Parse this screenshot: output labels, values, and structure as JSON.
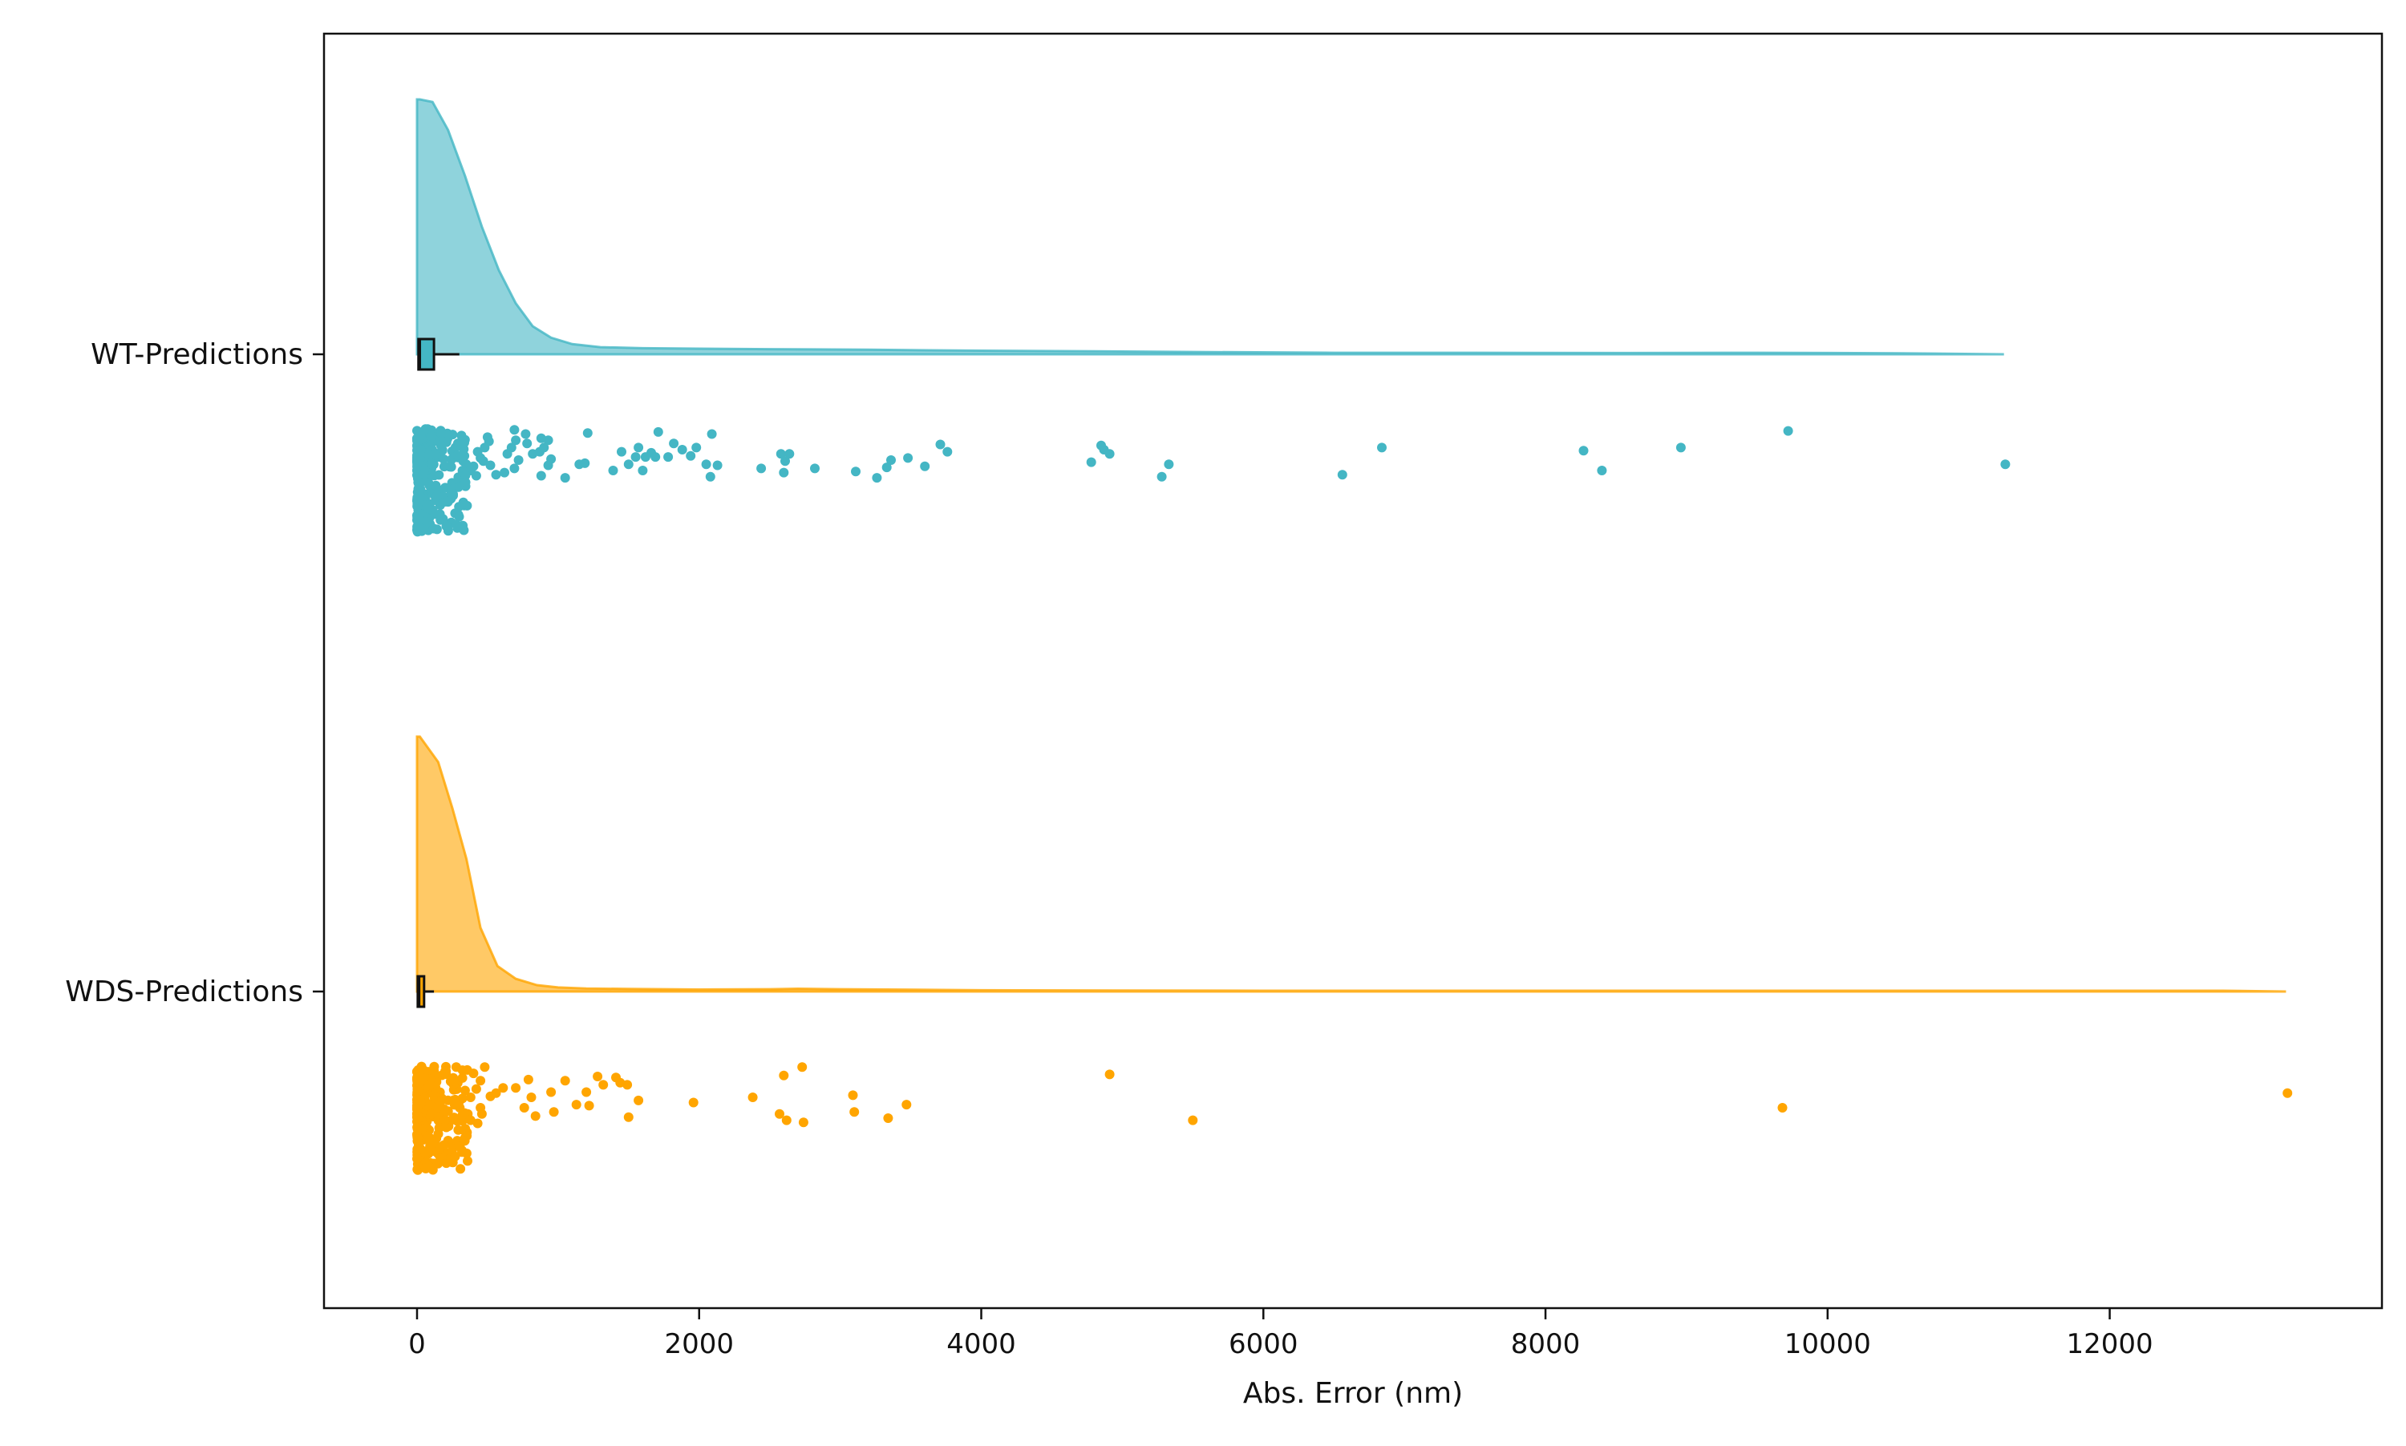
{
  "chart_data": {
    "type": "raincloud",
    "orientation": "horizontal",
    "title": "",
    "xlabel": "Abs. Error (nm)",
    "ylabel": "",
    "xlim": [
      -660,
      13760
    ],
    "xticks": [
      0,
      2000,
      4000,
      6000,
      8000,
      10000,
      12000
    ],
    "xtick_labels": [
      "0",
      "2000",
      "4000",
      "6000",
      "8000",
      "10000",
      "12000"
    ],
    "grid": false,
    "legend": false,
    "categories": [
      "WT-Predictions",
      "WDS-Predictions"
    ],
    "series": [
      {
        "name": "WT-Predictions",
        "color": "#44B6C4",
        "box": {
          "q1": 10,
          "median": 20,
          "q3": 120,
          "whisker_low": 0,
          "whisker_high": 300
        },
        "density": {
          "x": [
            0,
            20,
            110,
            220,
            340,
            460,
            580,
            700,
            820,
            950,
            1100,
            1300,
            1600,
            2000,
            2500,
            3200,
            4000,
            4800,
            5500,
            6500,
            7500,
            8500,
            9500,
            10500,
            11250
          ],
          "y": [
            1.0,
            1.0,
            0.99,
            0.88,
            0.7,
            0.5,
            0.33,
            0.2,
            0.11,
            0.065,
            0.04,
            0.028,
            0.024,
            0.022,
            0.02,
            0.018,
            0.014,
            0.012,
            0.009,
            0.006,
            0.006,
            0.005,
            0.006,
            0.004,
            0.0
          ]
        },
        "points": [
          [
            4850,
            0.16
          ],
          [
            4870,
            0.2
          ],
          [
            4910,
            0.24
          ],
          [
            9720,
            0.02
          ],
          [
            6840,
            0.18
          ],
          [
            8270,
            0.21
          ],
          [
            8960,
            0.18
          ],
          [
            11260,
            0.34
          ],
          [
            5330,
            0.34
          ],
          [
            5280,
            0.46
          ],
          [
            6560,
            0.44
          ],
          [
            8400,
            0.4
          ],
          [
            4780,
            0.32
          ],
          [
            3710,
            0.15
          ],
          [
            3760,
            0.22
          ],
          [
            3480,
            0.28
          ],
          [
            3360,
            0.3
          ],
          [
            3600,
            0.36
          ],
          [
            3110,
            0.41
          ],
          [
            3260,
            0.47
          ],
          [
            3330,
            0.37
          ],
          [
            2820,
            0.38
          ],
          [
            2580,
            0.24
          ],
          [
            2640,
            0.24
          ],
          [
            2610,
            0.31
          ],
          [
            2440,
            0.38
          ],
          [
            2600,
            0.42
          ],
          [
            2090,
            0.05
          ],
          [
            2130,
            0.35
          ],
          [
            2050,
            0.34
          ],
          [
            2080,
            0.46
          ],
          [
            1980,
            0.18
          ],
          [
            1940,
            0.26
          ],
          [
            1710,
            0.03
          ],
          [
            1820,
            0.14
          ],
          [
            1880,
            0.2
          ],
          [
            1780,
            0.27
          ],
          [
            1660,
            0.23
          ],
          [
            1690,
            0.27
          ],
          [
            1620,
            0.27
          ],
          [
            1570,
            0.18
          ],
          [
            1450,
            0.22
          ],
          [
            1390,
            0.4
          ],
          [
            1500,
            0.34
          ],
          [
            1550,
            0.27
          ],
          [
            1600,
            0.4
          ],
          [
            1210,
            0.04
          ],
          [
            1190,
            0.33
          ],
          [
            1150,
            0.34
          ],
          [
            1050,
            0.47
          ],
          [
            880,
            0.09
          ],
          [
            930,
            0.11
          ],
          [
            900,
            0.18
          ],
          [
            870,
            0.22
          ],
          [
            950,
            0.29
          ],
          [
            930,
            0.35
          ],
          [
            880,
            0.45
          ],
          [
            820,
            0.24
          ],
          [
            770,
            0.05
          ],
          [
            690,
            0.01
          ],
          [
            700,
            0.11
          ],
          [
            670,
            0.18
          ],
          [
            780,
            0.14
          ],
          [
            640,
            0.24
          ],
          [
            720,
            0.3
          ],
          [
            690,
            0.38
          ],
          [
            620,
            0.42
          ],
          [
            560,
            0.44
          ],
          [
            520,
            0.35
          ],
          [
            500,
            0.08
          ],
          [
            510,
            0.12
          ],
          [
            480,
            0.18
          ],
          [
            430,
            0.22
          ],
          [
            450,
            0.28
          ],
          [
            470,
            0.31
          ],
          [
            400,
            0.36
          ],
          [
            380,
            0.4
          ],
          [
            420,
            0.45
          ]
        ]
      },
      {
        "name": "WDS-Predictions",
        "color": "#FFA500",
        "box": {
          "q1": 5,
          "median": 15,
          "q3": 50,
          "whisker_low": 0,
          "whisker_high": 120
        },
        "density": {
          "x": [
            0,
            20,
            150,
            250,
            350,
            450,
            570,
            700,
            850,
            1000,
            1200,
            1500,
            2000,
            2500,
            2700,
            3000,
            4000,
            5000,
            6000,
            7000,
            8000,
            9000,
            10000,
            11000,
            12000,
            12800,
            13250
          ],
          "y": [
            1.0,
            1.0,
            0.9,
            0.72,
            0.52,
            0.25,
            0.1,
            0.05,
            0.025,
            0.016,
            0.012,
            0.01,
            0.008,
            0.009,
            0.011,
            0.009,
            0.005,
            0.004,
            0.003,
            0.003,
            0.003,
            0.003,
            0.003,
            0.003,
            0.003,
            0.003,
            0.0
          ]
        },
        "points": [
          [
            13260,
            0.26
          ],
          [
            9680,
            0.4
          ],
          [
            4910,
            0.08
          ],
          [
            5500,
            0.52
          ],
          [
            2730,
            0.01
          ],
          [
            2600,
            0.09
          ],
          [
            2740,
            0.54
          ],
          [
            2620,
            0.52
          ],
          [
            2570,
            0.46
          ],
          [
            2380,
            0.3
          ],
          [
            3470,
            0.37
          ],
          [
            3340,
            0.5
          ],
          [
            3100,
            0.44
          ],
          [
            3090,
            0.28
          ],
          [
            1960,
            0.35
          ],
          [
            1570,
            0.33
          ],
          [
            1500,
            0.49
          ],
          [
            1490,
            0.18
          ],
          [
            1440,
            0.16
          ],
          [
            1410,
            0.11
          ],
          [
            1280,
            0.1
          ],
          [
            1320,
            0.18
          ],
          [
            1200,
            0.25
          ],
          [
            1220,
            0.38
          ],
          [
            1130,
            0.37
          ],
          [
            1050,
            0.14
          ],
          [
            950,
            0.25
          ],
          [
            970,
            0.44
          ],
          [
            840,
            0.48
          ],
          [
            810,
            0.3
          ],
          [
            760,
            0.4
          ],
          [
            790,
            0.13
          ],
          [
            700,
            0.21
          ],
          [
            610,
            0.21
          ],
          [
            560,
            0.26
          ],
          [
            520,
            0.29
          ],
          [
            480,
            0.01
          ],
          [
            400,
            0.07
          ],
          [
            450,
            0.14
          ],
          [
            420,
            0.22
          ],
          [
            380,
            0.3
          ],
          [
            450,
            0.4
          ],
          [
            460,
            0.46
          ],
          [
            380,
            0.52
          ],
          [
            430,
            0.55
          ]
        ]
      }
    ]
  }
}
